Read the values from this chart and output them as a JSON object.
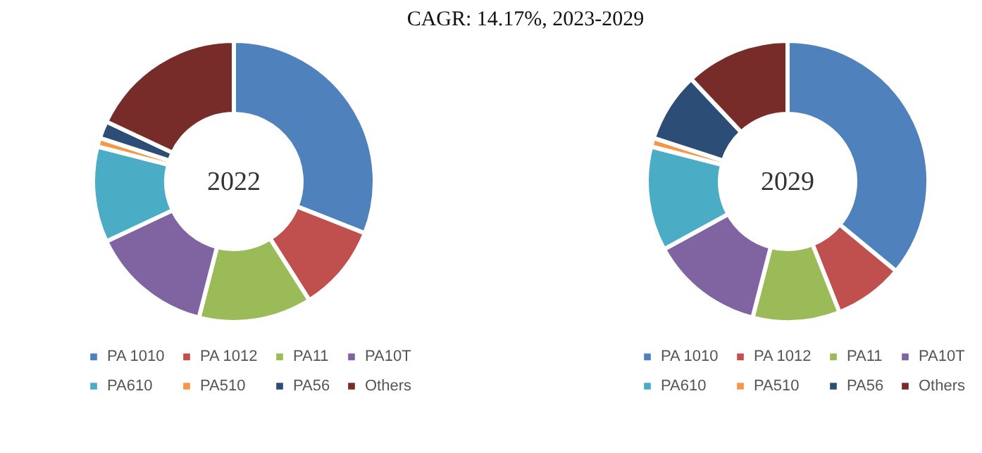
{
  "chart_data": [
    {
      "type": "donut",
      "title": "2022",
      "annotations": [
        "CAGR:    14.17%, 2023-2029"
      ],
      "categories": [
        "PA 1010",
        "PA 1012",
        "PA11",
        "PA10T",
        "PA610",
        "PA510",
        "PA56",
        "Others"
      ],
      "values": [
        31,
        10,
        13,
        14,
        11,
        1,
        2,
        18
      ],
      "colors": [
        "#4f81bd",
        "#c0504d",
        "#9bbb59",
        "#8064a2",
        "#4bacc6",
        "#f79646",
        "#2c4d75",
        "#772c2a"
      ],
      "legend": "bottom"
    },
    {
      "type": "donut",
      "title": "2029",
      "categories": [
        "PA 1010",
        "PA 1012",
        "PA11",
        "PA10T",
        "PA610",
        "PA510",
        "PA56",
        "Others"
      ],
      "values": [
        36,
        8,
        10,
        13,
        12,
        1,
        8,
        12
      ],
      "colors": [
        "#4f81bd",
        "#c0504d",
        "#9bbb59",
        "#8064a2",
        "#4bacc6",
        "#f79646",
        "#2c4d75",
        "#772c2a"
      ],
      "legend": "bottom"
    }
  ]
}
